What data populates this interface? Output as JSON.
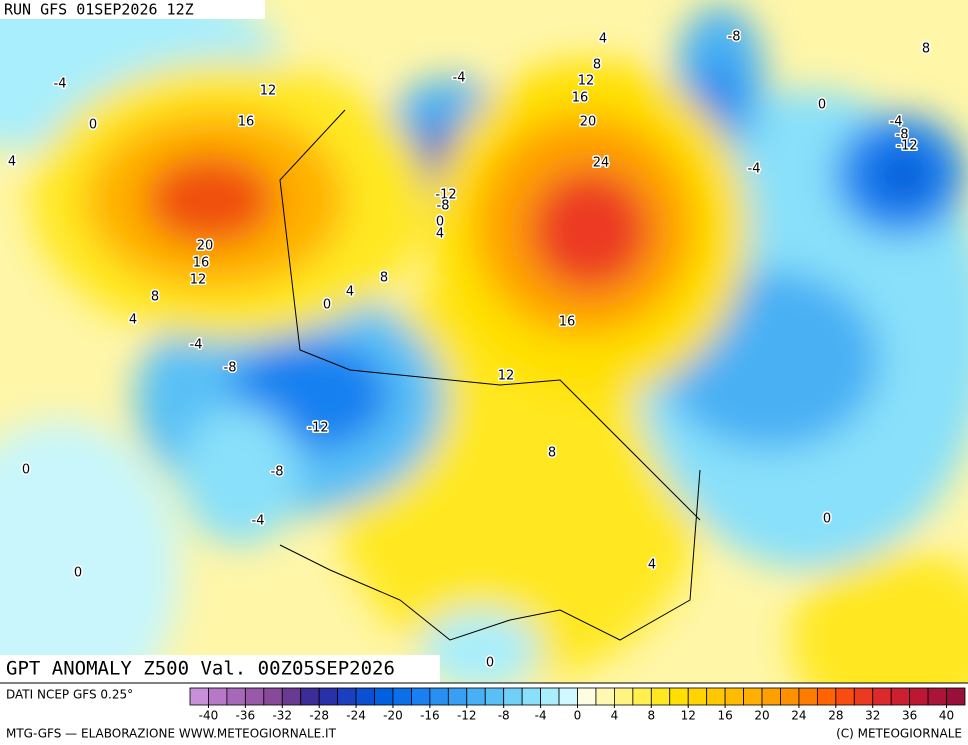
{
  "header": {
    "run": "RUN GFS 01SEP2026 12Z"
  },
  "map": {
    "title": "GPT ANOMALY Z500 Val. 00Z05SEP2026",
    "contour_labels": [
      4,
      -8,
      8,
      8,
      -4,
      -4,
      12,
      12,
      16,
      0,
      0,
      16,
      20,
      -4,
      -8,
      -12,
      4,
      24,
      -4,
      -12,
      -8,
      0,
      4,
      20,
      16,
      12,
      8,
      4,
      8,
      0,
      4,
      16,
      -4,
      -8,
      12,
      -12,
      8,
      0,
      -8,
      -4,
      0,
      4,
      0,
      0
    ]
  },
  "colorbar": {
    "source": "DATI NCEP GFS 0.25°",
    "lim": [
      -42,
      42
    ],
    "ticks": [
      -40,
      -36,
      -32,
      -28,
      -24,
      -20,
      -16,
      -12,
      -8,
      -4,
      0,
      4,
      8,
      12,
      16,
      20,
      24,
      28,
      32,
      36,
      40
    ],
    "colors": [
      "#c890d8",
      "#b878c8",
      "#a868b8",
      "#985aa8",
      "#884a98",
      "#6a3a90",
      "#3c2c98",
      "#2a30a8",
      "#1a40c0",
      "#0a50d0",
      "#0060e0",
      "#0a70ea",
      "#1880f0",
      "#2890f0",
      "#38a0f2",
      "#48b0f4",
      "#58c0f6",
      "#70d0f8",
      "#88e0fa",
      "#a8eefc",
      "#d0f8fe",
      "#fffde0",
      "#fff8b0",
      "#fff480",
      "#fff050",
      "#ffe820",
      "#ffe000",
      "#ffd400",
      "#ffc800",
      "#ffbc00",
      "#ffb000",
      "#ffa000",
      "#ff9000",
      "#ff7c00",
      "#ff6400",
      "#f84c10",
      "#ec3a20",
      "#dc2a2a",
      "#cc2030",
      "#bc1834",
      "#aa1436",
      "#981038"
    ]
  },
  "footer": {
    "left": "MTG-GFS — ELABORAZIONE WWW.METEOGIORNALE.IT",
    "right": "(C) METEOGIORNALE"
  }
}
